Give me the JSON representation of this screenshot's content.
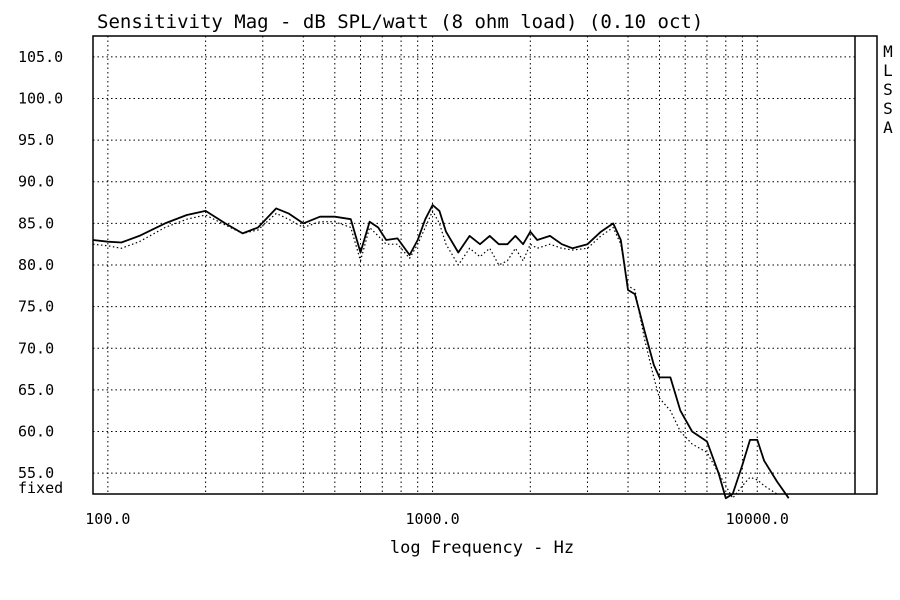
{
  "chart_data": {
    "type": "line",
    "title": "Sensitivity Mag - dB SPL/watt (8 ohm load) (0.10 oct)",
    "xlabel": "log Frequency - Hz",
    "ylabel": "",
    "x_scale": "log",
    "xlim": [
      90,
      20000
    ],
    "ylim": [
      52.5,
      107.5
    ],
    "x_ticks": [
      100,
      1000,
      10000
    ],
    "x_tick_labels": [
      "100.0",
      "1000.0",
      "10000.0"
    ],
    "y_ticks": [
      105,
      100,
      95,
      90,
      85,
      80,
      75,
      70,
      65,
      60,
      55
    ],
    "y_tick_labels": [
      "105.0",
      "100.0",
      "95.0",
      "90.0",
      "85.0",
      "80.0",
      "75.0",
      "70.0",
      "65.0",
      "60.0",
      "55.0"
    ],
    "y_bottom_label": "fixed",
    "side_label": [
      "M",
      "L",
      "S",
      "S",
      "A"
    ],
    "grid": true,
    "series": [
      {
        "style": "solid",
        "color": "#000000",
        "x": [
          90,
          100,
          110,
          125,
          150,
          175,
          200,
          230,
          260,
          290,
          330,
          360,
          400,
          450,
          500,
          560,
          600,
          640,
          680,
          720,
          780,
          850,
          900,
          950,
          1000,
          1050,
          1100,
          1200,
          1300,
          1400,
          1500,
          1600,
          1700,
          1800,
          1900,
          2000,
          2100,
          2300,
          2500,
          2700,
          3000,
          3300,
          3600,
          3800,
          4000,
          4200,
          4500,
          4800,
          5000,
          5400,
          5800,
          6300,
          7000,
          7600,
          8000,
          8400,
          9000,
          9500,
          10000,
          10500,
          11500,
          12500
        ],
        "y": [
          83,
          82.8,
          82.7,
          83.5,
          85,
          86,
          86.5,
          85,
          83.8,
          84.5,
          86.8,
          86.2,
          85,
          85.8,
          85.8,
          85.5,
          81.5,
          85.2,
          84.5,
          83,
          83.2,
          81.2,
          83,
          85.5,
          87.2,
          86.5,
          84,
          81.5,
          83.5,
          82.5,
          83.5,
          82.5,
          82.5,
          83.5,
          82.5,
          84,
          83,
          83.5,
          82.5,
          82,
          82.5,
          84,
          85,
          83,
          77,
          76.5,
          72,
          68,
          66.5,
          66.5,
          62.5,
          60,
          58.8,
          55,
          52,
          52.5,
          56,
          59,
          59,
          56.5,
          54,
          52
        ]
      },
      {
        "style": "dotted",
        "color": "#000000",
        "x": [
          90,
          100,
          110,
          125,
          150,
          175,
          200,
          230,
          260,
          290,
          330,
          360,
          400,
          450,
          500,
          560,
          600,
          640,
          680,
          720,
          780,
          850,
          900,
          950,
          1000,
          1050,
          1100,
          1200,
          1300,
          1400,
          1500,
          1600,
          1700,
          1800,
          1900,
          2000,
          2100,
          2300,
          2500,
          2700,
          3000,
          3300,
          3600,
          3800,
          4000,
          4200,
          4500,
          4800,
          5000,
          5400,
          5800,
          6300,
          7000,
          7600,
          8000,
          8400,
          9000,
          9500,
          10000,
          10500,
          11500
        ],
        "y": [
          82.5,
          82.3,
          82,
          82.8,
          84.5,
          85.5,
          86,
          84.8,
          83.8,
          84.2,
          86.2,
          85.5,
          84.5,
          85.2,
          85.2,
          84.5,
          80.5,
          84.5,
          83.5,
          82.5,
          82.5,
          80.8,
          82.5,
          84.5,
          86.5,
          85,
          82.5,
          80,
          82,
          81,
          82,
          80,
          80.5,
          82,
          80.5,
          82.5,
          82,
          82.5,
          82,
          81.8,
          82,
          83.5,
          84.5,
          82.5,
          77.5,
          77,
          71,
          66.5,
          64,
          62.5,
          60,
          58.5,
          57.5,
          55,
          53.5,
          52,
          53.5,
          54.5,
          54.2,
          53.5,
          52.5
        ]
      }
    ]
  }
}
